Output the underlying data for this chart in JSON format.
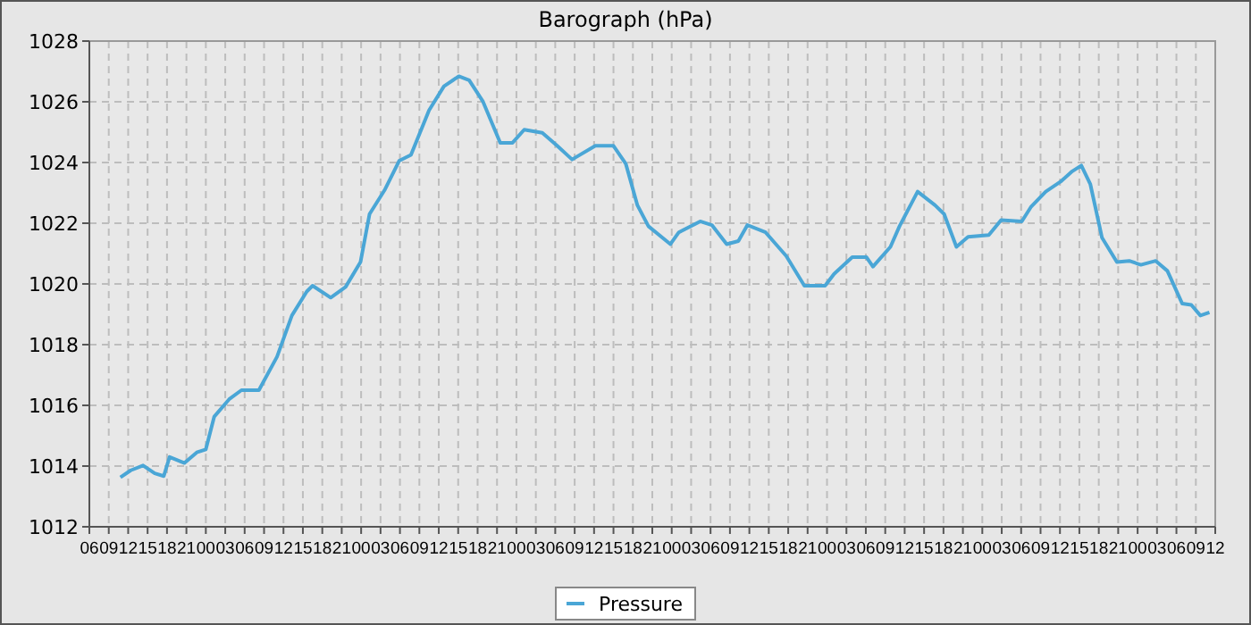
{
  "chart_data": {
    "type": "line",
    "title": "Barograph (hPa)",
    "legend": "bottom",
    "grid": true,
    "line_style": "solid",
    "marker": "none",
    "xlim": [
      6,
      180
    ],
    "xticks": [
      {
        "value": 6,
        "label": "06"
      },
      {
        "value": 9,
        "label": "09"
      },
      {
        "value": 12,
        "label": "12"
      },
      {
        "value": 15,
        "label": "15"
      },
      {
        "value": 18,
        "label": "18"
      },
      {
        "value": 21,
        "label": "21"
      },
      {
        "value": 24,
        "label": "00"
      },
      {
        "value": 27,
        "label": "03"
      },
      {
        "value": 30,
        "label": "06"
      },
      {
        "value": 33,
        "label": "09"
      },
      {
        "value": 36,
        "label": "12"
      },
      {
        "value": 39,
        "label": "15"
      },
      {
        "value": 42,
        "label": "18"
      },
      {
        "value": 45,
        "label": "21"
      },
      {
        "value": 48,
        "label": "00"
      },
      {
        "value": 51,
        "label": "03"
      },
      {
        "value": 54,
        "label": "06"
      },
      {
        "value": 57,
        "label": "09"
      },
      {
        "value": 60,
        "label": "12"
      },
      {
        "value": 63,
        "label": "15"
      },
      {
        "value": 66,
        "label": "18"
      },
      {
        "value": 69,
        "label": "21"
      },
      {
        "value": 72,
        "label": "00"
      },
      {
        "value": 75,
        "label": "03"
      },
      {
        "value": 78,
        "label": "06"
      },
      {
        "value": 81,
        "label": "09"
      },
      {
        "value": 84,
        "label": "12"
      },
      {
        "value": 87,
        "label": "15"
      },
      {
        "value": 90,
        "label": "18"
      },
      {
        "value": 93,
        "label": "21"
      },
      {
        "value": 96,
        "label": "00"
      },
      {
        "value": 99,
        "label": "03"
      },
      {
        "value": 102,
        "label": "06"
      },
      {
        "value": 105,
        "label": "09"
      },
      {
        "value": 108,
        "label": "12"
      },
      {
        "value": 111,
        "label": "15"
      },
      {
        "value": 114,
        "label": "18"
      },
      {
        "value": 117,
        "label": "21"
      },
      {
        "value": 120,
        "label": "00"
      },
      {
        "value": 123,
        "label": "03"
      },
      {
        "value": 126,
        "label": "06"
      },
      {
        "value": 129,
        "label": "09"
      },
      {
        "value": 132,
        "label": "12"
      },
      {
        "value": 135,
        "label": "15"
      },
      {
        "value": 138,
        "label": "18"
      },
      {
        "value": 141,
        "label": "21"
      },
      {
        "value": 144,
        "label": "00"
      },
      {
        "value": 147,
        "label": "03"
      },
      {
        "value": 150,
        "label": "06"
      },
      {
        "value": 153,
        "label": "09"
      },
      {
        "value": 156,
        "label": "12"
      },
      {
        "value": 159,
        "label": "15"
      },
      {
        "value": 162,
        "label": "18"
      },
      {
        "value": 165,
        "label": "21"
      },
      {
        "value": 168,
        "label": "00"
      },
      {
        "value": 171,
        "label": "03"
      },
      {
        "value": 174,
        "label": "06"
      },
      {
        "value": 177,
        "label": "09"
      },
      {
        "value": 180,
        "label": "12"
      }
    ],
    "ylim": [
      1012,
      1028
    ],
    "yticks": [
      1012,
      1014,
      1016,
      1018,
      1020,
      1022,
      1024,
      1026,
      1028
    ],
    "series": [
      {
        "name": "Pressure",
        "color": "#4aa6d6",
        "x": [
          10.8,
          12.4,
          14.3,
          16.1,
          17.5,
          18.4,
          20.7,
          22.6,
          24,
          25.3,
          27.6,
          29.5,
          32.2,
          35,
          37.3,
          39.6,
          40.5,
          43.3,
          45.6,
          47.9,
          49.3,
          51.6,
          53.9,
          55.7,
          58.5,
          60.8,
          63.1,
          64.7,
          66.8,
          69.5,
          71.4,
          73.2,
          76,
          78.3,
          80.6,
          84.2,
          87,
          88.9,
          90.7,
          92.4,
          95.8,
          97.1,
          100.4,
          102.2,
          104.5,
          106.3,
          107.7,
          110.5,
          113.7,
          116.5,
          119.7,
          121.1,
          123.9,
          126.1,
          127.1,
          129.8,
          131.2,
          134,
          136.7,
          138.1,
          140,
          141.8,
          145,
          146.9,
          150.1,
          151.5,
          153.8,
          156.1,
          157.9,
          159.3,
          160.7,
          162.5,
          164.8,
          166.7,
          168.5,
          170.8,
          172.6,
          174.9,
          176.3,
          177.7,
          179.1
        ],
        "values": [
          1013.63,
          1013.86,
          1014.02,
          1013.76,
          1013.67,
          1014.3,
          1014.1,
          1014.45,
          1014.55,
          1015.63,
          1016.2,
          1016.5,
          1016.5,
          1017.6,
          1018.96,
          1019.75,
          1019.94,
          1019.55,
          1019.9,
          1020.72,
          1022.3,
          1023.08,
          1024.06,
          1024.25,
          1025.72,
          1026.51,
          1026.84,
          1026.71,
          1026.02,
          1024.65,
          1024.65,
          1025.08,
          1024.98,
          1024.55,
          1024.1,
          1024.55,
          1024.55,
          1023.96,
          1022.59,
          1021.9,
          1021.31,
          1021.7,
          1022.06,
          1021.94,
          1021.31,
          1021.41,
          1021.94,
          1021.7,
          1020.92,
          1019.94,
          1019.94,
          1020.33,
          1020.88,
          1020.88,
          1020.57,
          1021.22,
          1021.9,
          1023.04,
          1022.59,
          1022.3,
          1021.22,
          1021.55,
          1021.61,
          1022.1,
          1022.06,
          1022.53,
          1023.04,
          1023.37,
          1023.71,
          1023.9,
          1023.28,
          1021.52,
          1020.72,
          1020.76,
          1020.63,
          1020.76,
          1020.43,
          1019.35,
          1019.31,
          1018.96,
          1019.06
        ]
      }
    ]
  }
}
